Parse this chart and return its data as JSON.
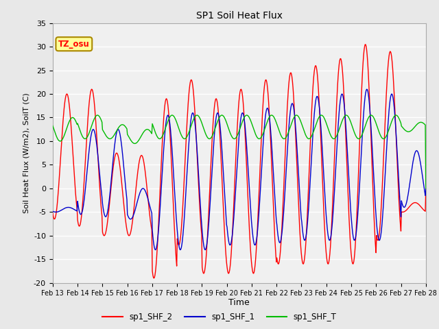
{
  "title": "SP1 Soil Heat Flux",
  "xlabel": "Time",
  "ylabel": "Soil Heat Flux (W/m2), SoilT (C)",
  "ylim": [
    -20,
    35
  ],
  "bg_color": "#e8e8e8",
  "plot_bg_color": "#f0f0f0",
  "tz_label": "TZ_osu",
  "xtick_labels": [
    "Feb 13",
    "Feb 14",
    "Feb 15",
    "Feb 16",
    "Feb 17",
    "Feb 18",
    "Feb 19",
    "Feb 20",
    "Feb 21",
    "Feb 22",
    "Feb 23",
    "Feb 24",
    "Feb 25",
    "Feb 26",
    "Feb 27",
    "Feb 28"
  ],
  "legend_entries": [
    "sp1_SHF_2",
    "sp1_SHF_1",
    "sp1_SHF_T"
  ],
  "color_SHF2": "#ff0000",
  "color_SHF1": "#0000cc",
  "color_SHFT": "#00bb00",
  "shf2_peaks": [
    20,
    21,
    7.5,
    7,
    19,
    23,
    19,
    21,
    23,
    24.5,
    26,
    27.5,
    30.5,
    29,
    -3
  ],
  "shf2_troughs": [
    -6.5,
    -8,
    -10,
    -10,
    -19,
    -12,
    -18,
    -18,
    -18,
    -16,
    -16,
    -16,
    -16,
    -11,
    -5
  ],
  "shf1_peaks": [
    -4,
    12.5,
    12.5,
    0,
    15.5,
    16,
    16,
    16,
    17,
    18,
    19.5,
    20,
    21,
    20,
    8
  ],
  "shf1_troughs": [
    -5,
    -5.5,
    -6,
    -6.5,
    -13,
    -13,
    -13,
    -12,
    -12,
    -11.5,
    -11,
    -11,
    -11,
    -11,
    -4
  ],
  "shft_mids": [
    12.5,
    13,
    12,
    11,
    13,
    13,
    13,
    13,
    13,
    13,
    13,
    13,
    13,
    13,
    13
  ],
  "shft_amps": [
    2.5,
    2.5,
    1.5,
    1.5,
    2.5,
    2.5,
    2.5,
    2.5,
    2.5,
    2.5,
    2.5,
    2.5,
    2.5,
    2.5,
    1
  ],
  "yticks": [
    -20,
    -15,
    -10,
    -5,
    0,
    5,
    10,
    15,
    20,
    25,
    30,
    35
  ]
}
